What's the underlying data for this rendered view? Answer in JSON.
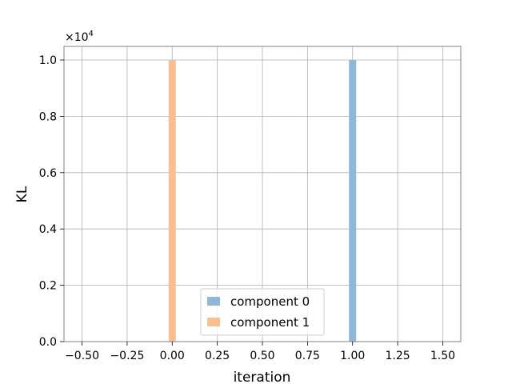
{
  "chart_data": {
    "type": "bar",
    "xlabel": "iteration",
    "ylabel": "KL",
    "y_multiplier_label": "×10",
    "y_multiplier_exponent": "4",
    "xlim": [
      -0.6,
      1.6
    ],
    "ylim": [
      0,
      1.0
    ],
    "grid": true,
    "x_ticks": [
      -0.5,
      -0.25,
      0.0,
      0.25,
      0.5,
      0.75,
      1.0,
      1.25,
      1.5
    ],
    "x_tick_labels": [
      "−0.50",
      "−0.25",
      "0.00",
      "0.25",
      "0.50",
      "0.75",
      "1.00",
      "1.25",
      "1.50"
    ],
    "y_ticks": [
      0.0,
      0.2,
      0.4,
      0.6,
      0.8,
      1.0
    ],
    "y_tick_labels": [
      "0.0",
      "0.2",
      "0.4",
      "0.6",
      "0.8",
      "1.0"
    ],
    "series": [
      {
        "name": "component 0",
        "color": "#8fb8d8",
        "x": [
          1.0
        ],
        "values": [
          1.0
        ]
      },
      {
        "name": "component 1",
        "color": "#fbbf8d",
        "x": [
          0.0
        ],
        "values": [
          1.0
        ]
      }
    ],
    "legend": {
      "placement": "lower-center"
    }
  }
}
